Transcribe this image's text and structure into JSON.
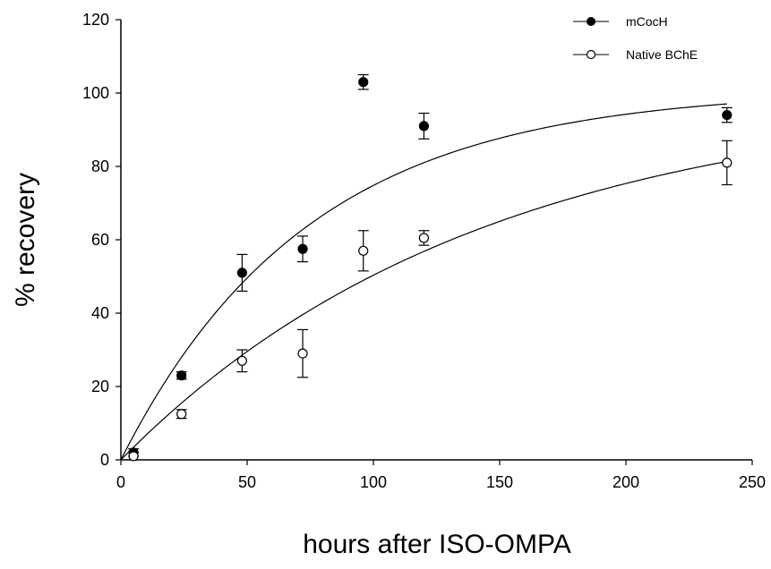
{
  "chart_data": {
    "type": "scatter",
    "title": "",
    "xlabel": "hours after ISO-OMPA",
    "ylabel": "% recovery",
    "xlim": [
      0,
      250
    ],
    "ylim": [
      0,
      120
    ],
    "xticks": [
      0,
      50,
      100,
      150,
      200,
      250
    ],
    "yticks": [
      0,
      20,
      40,
      60,
      80,
      100,
      120
    ],
    "grid": false,
    "legend_position": "top-right",
    "series": [
      {
        "name": "mCocH",
        "marker": "filled-circle",
        "color": "#000000",
        "x": [
          5,
          24,
          48,
          72,
          96,
          120,
          240
        ],
        "y": [
          2,
          23,
          51,
          57.5,
          103,
          91,
          94
        ],
        "error": [
          1,
          1,
          5,
          3.5,
          2,
          3.5,
          2
        ],
        "fit_curve": {
          "asymptote": 101,
          "rate": 0.0135
        }
      },
      {
        "name": "Native BChE",
        "marker": "open-circle",
        "color": "#000000",
        "x": [
          5,
          24,
          48,
          72,
          96,
          120,
          240
        ],
        "y": [
          1,
          12.5,
          27,
          29,
          57,
          60.5,
          81
        ],
        "error": [
          1,
          1.2,
          3,
          6.5,
          5.5,
          2,
          6
        ],
        "fit_curve": {
          "asymptote": 100,
          "rate": 0.007
        }
      }
    ]
  }
}
